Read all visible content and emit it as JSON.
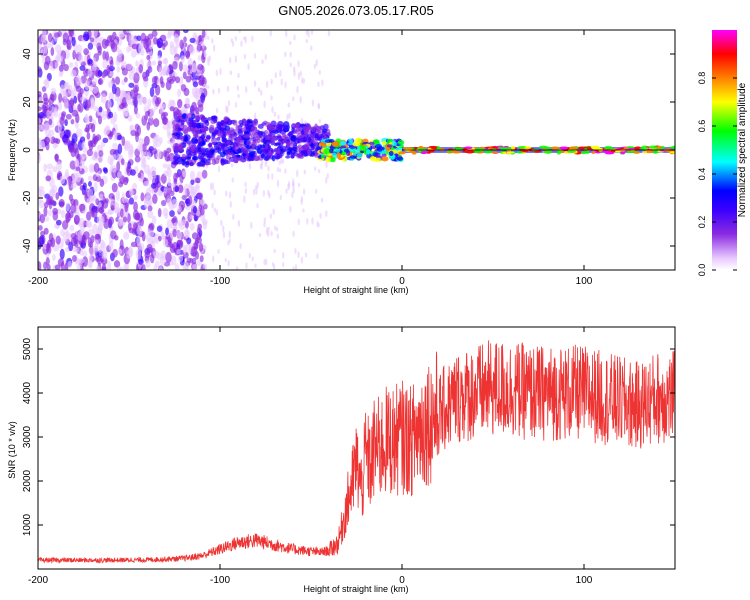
{
  "title": "GN05.2026.073.05.17.R05",
  "chart_data": [
    {
      "type": "heatmap",
      "xlabel": "Height of straight line (km)",
      "ylabel": "Frequency (Hz)",
      "xlim": [
        -200,
        150
      ],
      "ylim": [
        -50,
        50
      ],
      "xticks": [
        -200,
        -100,
        0,
        100
      ],
      "yticks": [
        -40,
        -20,
        0,
        20,
        40
      ],
      "xtick_labels": [
        "-200",
        "-100",
        "0",
        "100"
      ],
      "ytick_labels": [
        "-40",
        "-20",
        "0",
        "20",
        "40"
      ],
      "colorbar": {
        "label": "Normalized spectral amplitude",
        "range": [
          0,
          1
        ],
        "ticks": [
          0,
          0.2,
          0.4,
          0.6,
          0.8
        ],
        "tick_labels": [
          "0.0",
          "0.2",
          "0.4",
          "0.6",
          "0.8"
        ],
        "colors": [
          "#ffffff",
          "#e8c8ff",
          "#8a2be2",
          "#3a00ff",
          "#0000ff",
          "#00ffff",
          "#00ff00",
          "#ffff00",
          "#ff8000",
          "#ff0000",
          "#ff00ff"
        ]
      },
      "regions": [
        {
          "x_range": [
            -200,
            -110
          ],
          "freq_spread": [
            -50,
            50
          ],
          "amplitude": "0.1-0.25"
        },
        {
          "x_range": [
            -125,
            -40
          ],
          "freq_center": 5,
          "freq_spread": [
            -10,
            15
          ],
          "amplitude": "0.2-0.4"
        },
        {
          "x_range": [
            -40,
            0
          ],
          "freq_center": 0,
          "freq_spread": [
            -4,
            4
          ],
          "amplitude": "0.3-0.9"
        },
        {
          "x_range": [
            0,
            150
          ],
          "freq_center": 0,
          "freq_spread": [
            -2,
            2
          ],
          "amplitude": "0.9-1.0"
        }
      ]
    },
    {
      "type": "line",
      "xlabel": "Height of straight line (km)",
      "ylabel": "SNR (10 * v/v)",
      "xlim": [
        -200,
        150
      ],
      "ylim": [
        0,
        5500
      ],
      "xticks": [
        -200,
        -100,
        0,
        100
      ],
      "yticks": [
        1000,
        2000,
        3000,
        4000,
        5000
      ],
      "xtick_labels": [
        "-200",
        "-100",
        "0",
        "100"
      ],
      "ytick_labels": [
        "1000",
        "2000",
        "3000",
        "4000",
        "5000"
      ],
      "series": [
        {
          "name": "SNR",
          "color": "#ee3333",
          "x": [
            -200,
            -180,
            -160,
            -140,
            -120,
            -110,
            -100,
            -90,
            -80,
            -70,
            -60,
            -50,
            -45,
            -40,
            -35,
            -30,
            -27,
            -25,
            -22,
            -20,
            -17,
            -15,
            -12,
            -10,
            -5,
            0,
            5,
            10,
            15,
            20,
            25,
            30,
            40,
            50,
            60,
            70,
            80,
            90,
            100,
            110,
            120,
            130,
            140,
            150
          ],
          "values": [
            200,
            200,
            200,
            210,
            240,
            300,
            450,
            600,
            650,
            550,
            450,
            400,
            380,
            420,
            600,
            1500,
            2000,
            2400,
            1800,
            2600,
            2300,
            2800,
            2700,
            2900,
            2900,
            3000,
            2900,
            3200,
            3400,
            3500,
            3700,
            3900,
            4000,
            4100,
            4100,
            4000,
            4000,
            4000,
            4000,
            3900,
            3800,
            3700,
            3900,
            3900
          ]
        }
      ]
    }
  ]
}
